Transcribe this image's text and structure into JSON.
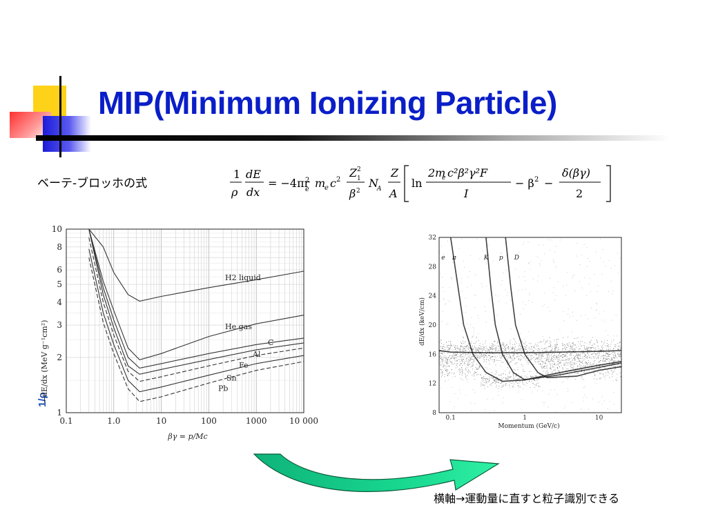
{
  "slide": {
    "title": "MIP(Minimum Ionizing Particle)",
    "formula_label": "ベーテ-ブロッホの式",
    "note": "横軸→運動量に直すと粒子識別できる",
    "title_color": "#0a1ec8"
  },
  "formula": {
    "lhs_num": "1",
    "lhs_den": "ρ",
    "dE": "dE",
    "dx": "dx",
    "rhs": "= −4πr",
    "e2": "e",
    "mec2": "m",
    "Z1": "Z",
    "beta2": "β",
    "NA": "N",
    "Z": "Z",
    "A": "A",
    "ln": "ln",
    "lnnum": "2m",
    "I": "I",
    "minus_beta": "− β",
    "minus_delta": "− ",
    "delta": "δ(βγ)",
    "two": "2"
  },
  "chart_data": [
    {
      "type": "line",
      "title": "",
      "xlabel": "βγ = p/Mc",
      "ylabel": "−dE/dx (MeV g⁻¹cm²)",
      "side_label": "1/ρ",
      "xscale": "log",
      "yscale": "log",
      "xlim": [
        0.1,
        10000
      ],
      "ylim": [
        1,
        10
      ],
      "x_ticks": [
        "0.1",
        "1.0",
        "10",
        "100",
        "1000",
        "10 000"
      ],
      "y_ticks": [
        "1",
        "2",
        "3",
        "4",
        "5",
        "6",
        "8",
        "10"
      ],
      "grid": true,
      "series": [
        {
          "name": "H2 liquid",
          "x": [
            0.3,
            0.6,
            1.0,
            2.0,
            3.5,
            10,
            100,
            1000,
            10000
          ],
          "y": [
            10,
            8.0,
            5.8,
            4.4,
            4.05,
            4.3,
            4.8,
            5.3,
            5.9
          ]
        },
        {
          "name": "He gas",
          "x": [
            0.3,
            0.6,
            1.0,
            2.0,
            3.5,
            10,
            100,
            1000,
            10000
          ],
          "y": [
            10,
            5.2,
            3.6,
            2.25,
            1.94,
            2.1,
            2.6,
            3.05,
            3.4
          ]
        },
        {
          "name": "C",
          "x": [
            0.3,
            0.6,
            1.0,
            2.0,
            3.5,
            10,
            100,
            1000,
            10000
          ],
          "y": [
            10,
            4.8,
            3.2,
            2.0,
            1.75,
            1.85,
            2.1,
            2.35,
            2.55
          ]
        },
        {
          "name": "Al",
          "x": [
            0.3,
            0.6,
            1.0,
            2.0,
            3.5,
            10,
            100,
            1000,
            10000
          ],
          "y": [
            10,
            4.4,
            2.9,
            1.8,
            1.62,
            1.72,
            1.95,
            2.2,
            2.4
          ]
        },
        {
          "name": "Fe",
          "x": [
            0.3,
            0.6,
            1.0,
            2.0,
            3.5,
            10,
            100,
            1000,
            10000
          ],
          "y": [
            9.0,
            4.0,
            2.65,
            1.68,
            1.48,
            1.57,
            1.8,
            2.05,
            2.25
          ]
        },
        {
          "name": "Sn",
          "x": [
            0.3,
            0.6,
            1.0,
            2.0,
            3.5,
            10,
            100,
            1000,
            10000
          ],
          "y": [
            7.8,
            3.5,
            2.35,
            1.5,
            1.3,
            1.38,
            1.6,
            1.85,
            2.05
          ]
        },
        {
          "name": "Pb",
          "x": [
            0.3,
            0.6,
            1.0,
            2.0,
            3.5,
            10,
            100,
            1000,
            10000
          ],
          "y": [
            7.0,
            3.1,
            2.1,
            1.35,
            1.15,
            1.22,
            1.45,
            1.7,
            1.9
          ]
        }
      ]
    },
    {
      "type": "scatter",
      "title": "",
      "xlabel": "Momentum (GeV/c)",
      "ylabel": "dE/dx (keV/cm)",
      "xscale": "log",
      "xlim": [
        0.07,
        20
      ],
      "ylim": [
        8,
        32
      ],
      "x_ticks": [
        "0.1",
        "1",
        "10"
      ],
      "y_ticks": [
        "8",
        "12",
        "16",
        "20",
        "24",
        "28",
        "32"
      ],
      "band_labels": [
        "e",
        "π",
        "K",
        "p",
        "D"
      ],
      "series": [
        {
          "name": "π",
          "x": [
            0.1,
            0.15,
            0.2,
            0.3,
            0.5,
            1,
            3,
            10,
            20
          ],
          "y": [
            32,
            20,
            16,
            13.5,
            12.3,
            12.5,
            13.5,
            14.5,
            15
          ]
        },
        {
          "name": "K",
          "x": [
            0.3,
            0.35,
            0.4,
            0.5,
            0.7,
            1,
            3,
            10,
            20
          ],
          "y": [
            32,
            25,
            20,
            16,
            13.5,
            12.5,
            13.2,
            14.2,
            14.8
          ]
        },
        {
          "name": "p",
          "x": [
            0.55,
            0.65,
            0.75,
            1.0,
            1.5,
            2,
            5,
            10,
            20
          ],
          "y": [
            32,
            25,
            20,
            16,
            13.5,
            12.8,
            13,
            13.8,
            14.3
          ]
        },
        {
          "name": "e",
          "x": [
            0.07,
            0.1,
            0.3,
            1,
            3,
            10,
            20
          ],
          "y": [
            16.5,
            16.3,
            16.2,
            16.2,
            16.3,
            16.4,
            16.5
          ]
        }
      ]
    }
  ]
}
